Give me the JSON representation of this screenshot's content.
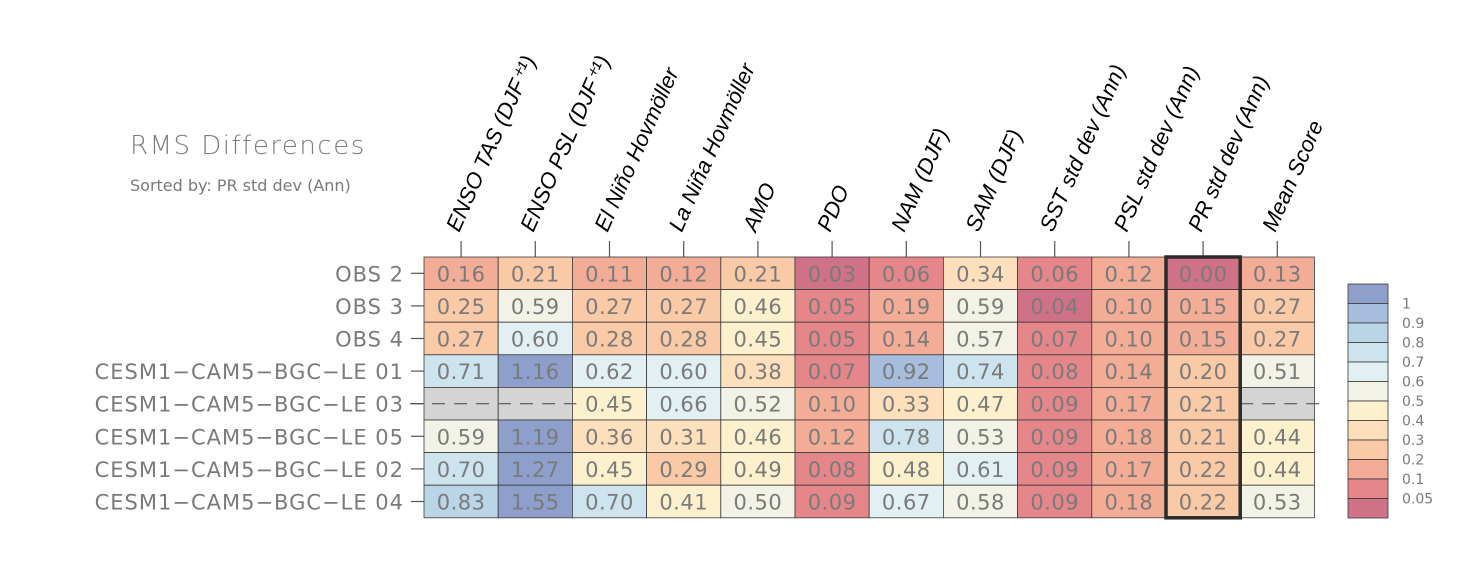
{
  "chart_data": {
    "type": "heatmap",
    "title": "RMS Differences",
    "subtitle": "Sorted by: PR std dev (Ann)",
    "columns": [
      "ENSO TAS (DJF⁺¹)",
      "ENSO PSL (DJF⁺¹)",
      "El Niño Hovmöller",
      "La Niña Hovmöller",
      "AMO",
      "PDO",
      "NAM (DJF)",
      "SAM (DJF)",
      "SST std dev (Ann)",
      "PSL std dev (Ann)",
      "PR std dev (Ann)",
      "Mean Score"
    ],
    "rows": [
      "OBS 2",
      "OBS 3",
      "OBS 4",
      "CESM1−CAM5−BGC−LE 01",
      "CESM1−CAM5−BGC−LE 03",
      "CESM1−CAM5−BGC−LE 05",
      "CESM1−CAM5−BGC−LE 02",
      "CESM1−CAM5−BGC−LE 04"
    ],
    "values": [
      [
        0.16,
        0.21,
        0.11,
        0.12,
        0.21,
        0.03,
        0.06,
        0.34,
        0.06,
        0.12,
        0.0,
        0.13
      ],
      [
        0.25,
        0.59,
        0.27,
        0.27,
        0.46,
        0.05,
        0.19,
        0.59,
        0.04,
        0.1,
        0.15,
        0.27
      ],
      [
        0.27,
        0.6,
        0.28,
        0.28,
        0.45,
        0.05,
        0.14,
        0.57,
        0.07,
        0.1,
        0.15,
        0.27
      ],
      [
        0.71,
        1.16,
        0.62,
        0.6,
        0.38,
        0.07,
        0.92,
        0.74,
        0.08,
        0.14,
        0.2,
        0.51
      ],
      [
        null,
        null,
        0.45,
        0.66,
        0.52,
        0.1,
        0.33,
        0.47,
        0.09,
        0.17,
        0.21,
        null
      ],
      [
        0.59,
        1.19,
        0.36,
        0.31,
        0.46,
        0.12,
        0.78,
        0.53,
        0.09,
        0.18,
        0.21,
        0.44
      ],
      [
        0.7,
        1.27,
        0.45,
        0.29,
        0.49,
        0.08,
        0.48,
        0.61,
        0.09,
        0.17,
        0.22,
        0.44
      ],
      [
        0.83,
        1.55,
        0.7,
        0.41,
        0.5,
        0.09,
        0.67,
        0.58,
        0.09,
        0.18,
        0.22,
        0.53
      ]
    ],
    "missing_value_display": "− − −",
    "highlighted_column": "PR std dev (Ann)",
    "colorbar": {
      "ticks": [
        "1",
        "0.9",
        "0.8",
        "0.7",
        "0.6",
        "0.5",
        "0.4",
        "0.3",
        "0.2",
        "0.1",
        "0.05"
      ],
      "bins": [
        {
          "min": 1.0,
          "color": "#8e9fcc"
        },
        {
          "min": 0.9,
          "color": "#a7bddd"
        },
        {
          "min": 0.8,
          "color": "#bad4e8"
        },
        {
          "min": 0.7,
          "color": "#cde4ef"
        },
        {
          "min": 0.6,
          "color": "#e2eff3"
        },
        {
          "min": 0.5,
          "color": "#f3f2e7"
        },
        {
          "min": 0.4,
          "color": "#fdf0cd"
        },
        {
          "min": 0.3,
          "color": "#fde0bb"
        },
        {
          "min": 0.2,
          "color": "#fac9a6"
        },
        {
          "min": 0.1,
          "color": "#f3ac96"
        },
        {
          "min": 0.05,
          "color": "#e4868a"
        },
        {
          "min": 0.0,
          "color": "#cf7187"
        }
      ]
    },
    "missing_color": "#d4d4d4"
  }
}
